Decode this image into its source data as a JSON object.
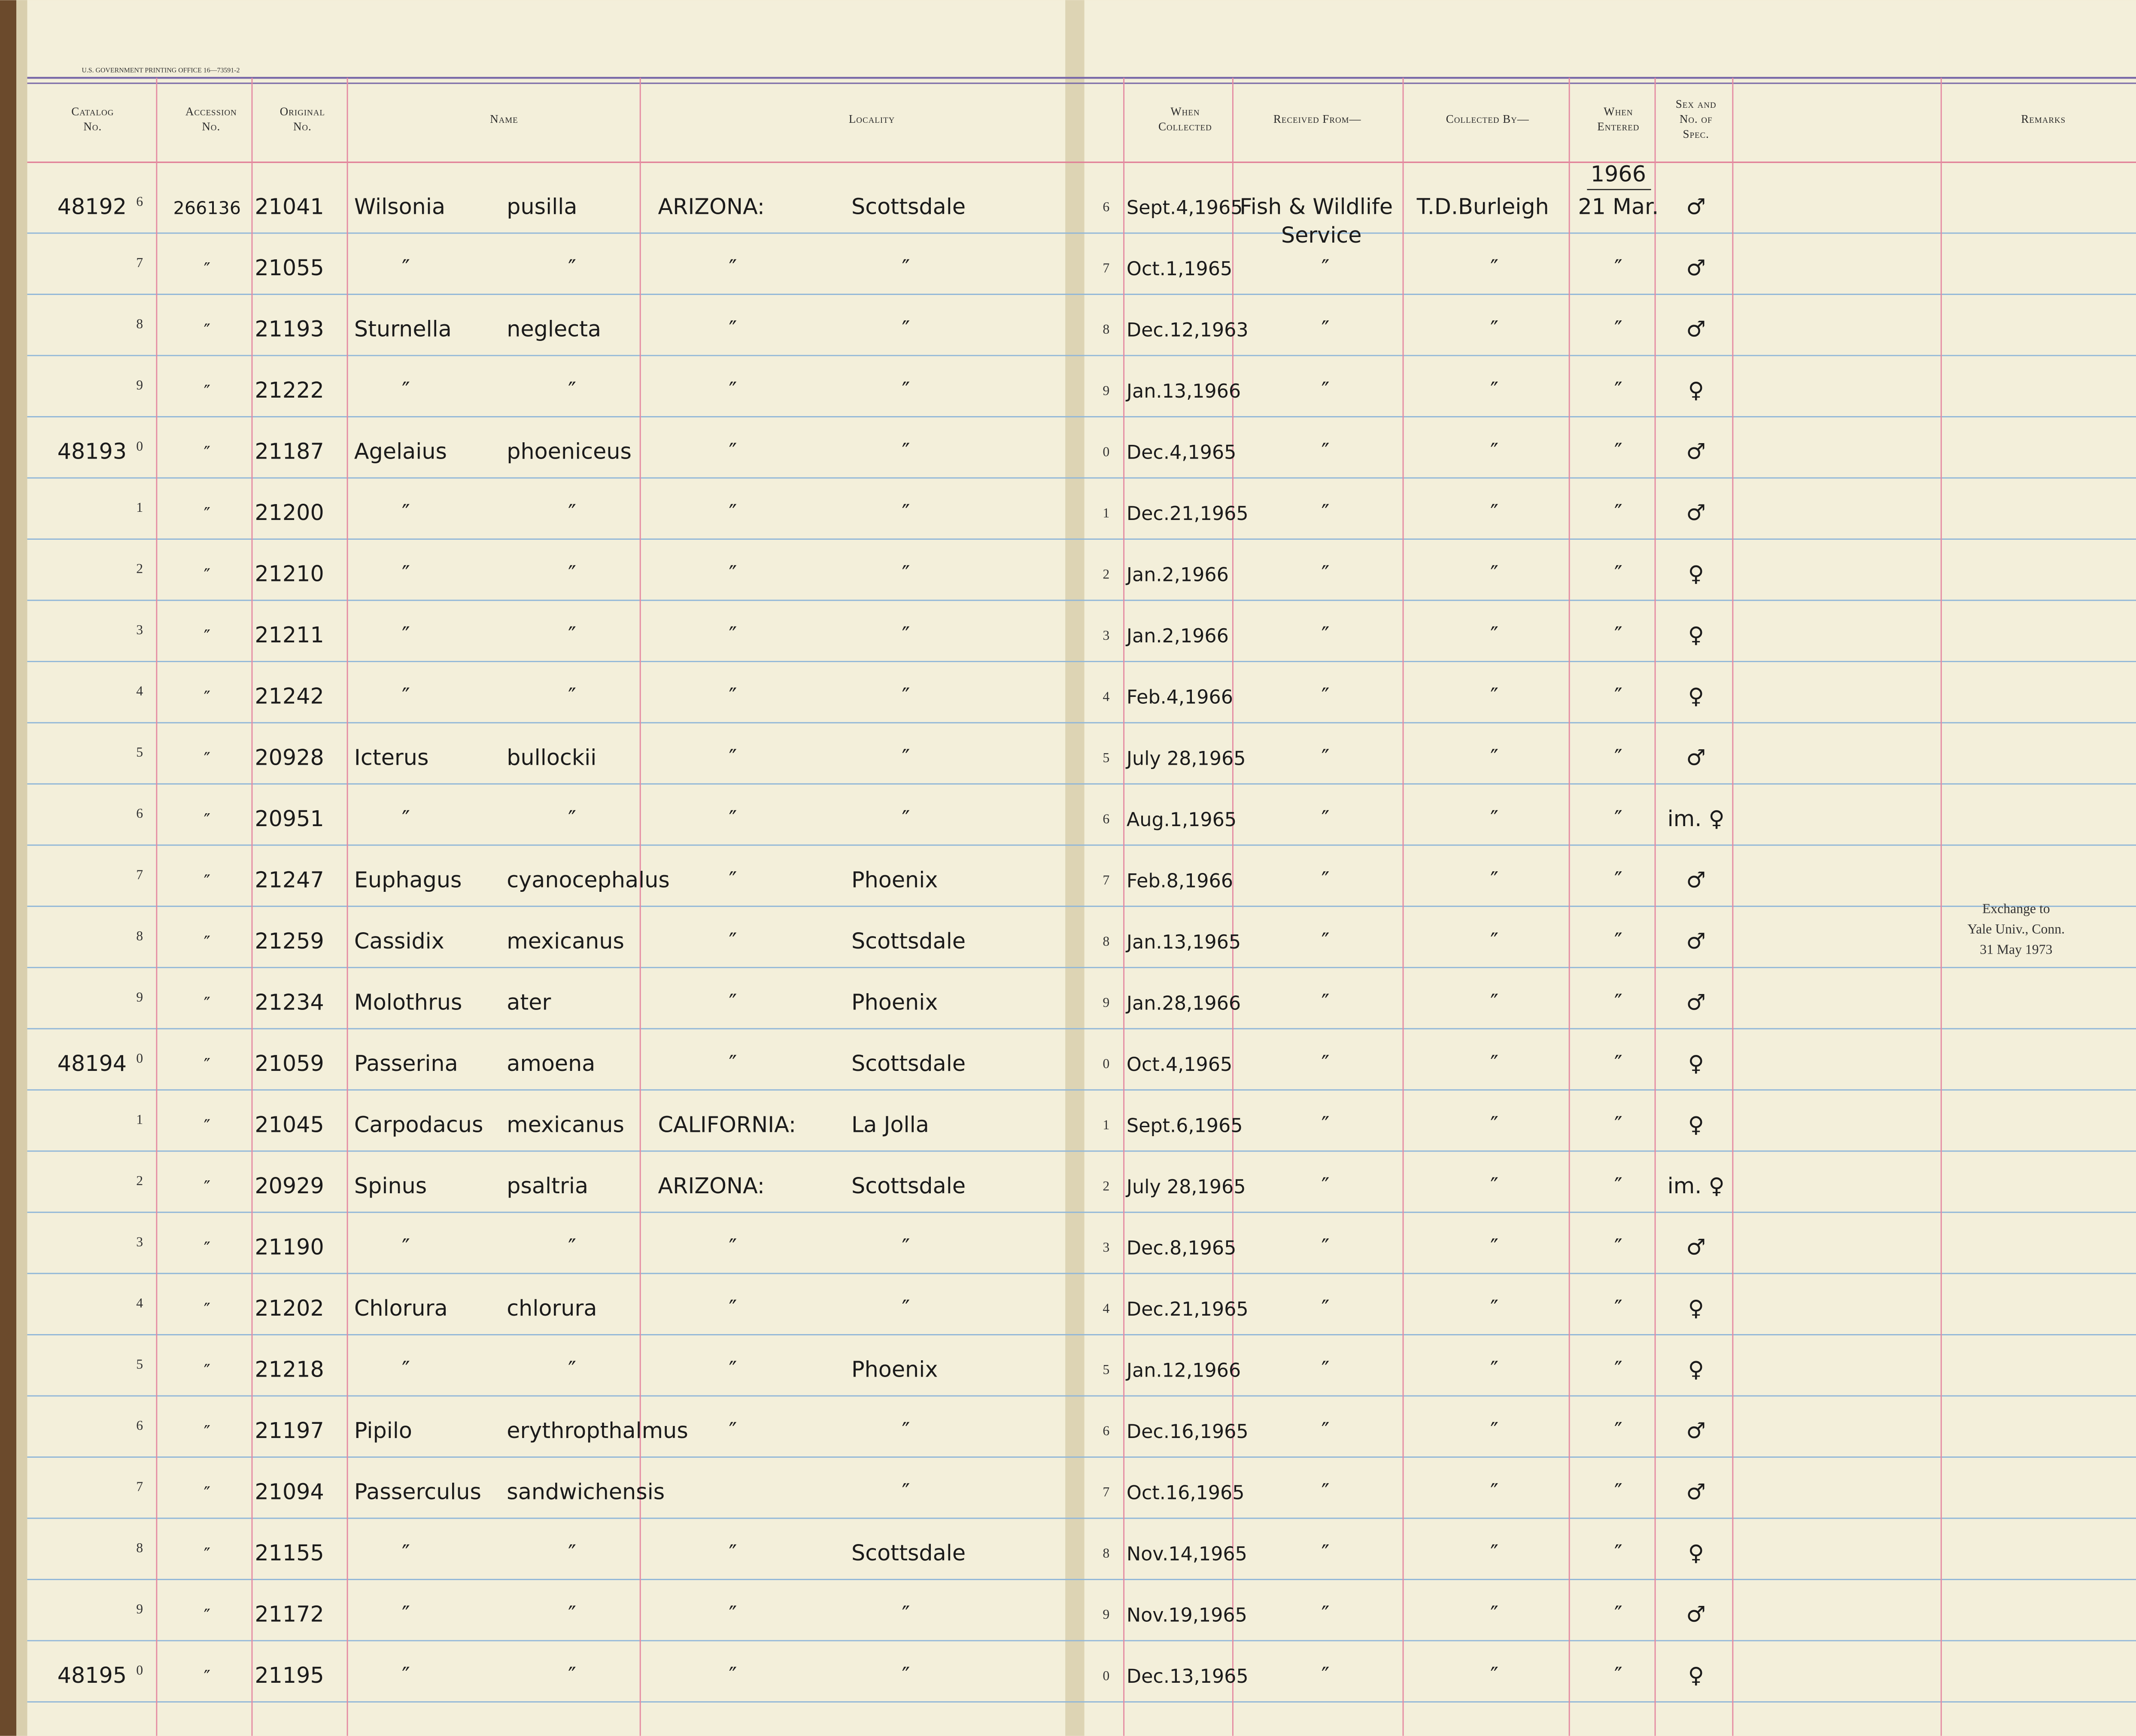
{
  "header": {
    "printer_imprint": "U.S. GOVERNMENT PRINTING OFFICE 16—73591-2",
    "columns": {
      "catalog": [
        "Catalog",
        "No."
      ],
      "accession": [
        "Accession",
        "No."
      ],
      "original": [
        "Original",
        "No."
      ],
      "name": [
        "Name"
      ],
      "locality": [
        "Locality"
      ],
      "collected": [
        "When",
        "Collected"
      ],
      "received": [
        "Received From—"
      ],
      "collected_by": [
        "Collected By—"
      ],
      "entered": [
        "When",
        "Entered"
      ],
      "sex": [
        "Sex and",
        "No. of",
        "Spec."
      ],
      "remarks": [
        "Remarks"
      ]
    }
  },
  "entered_year": "1966",
  "rows": [
    {
      "catalog": "48192",
      "digit": "6",
      "accession": "266136",
      "original": "21041",
      "genus": "Wilsonia",
      "species": "pusilla",
      "state": "ARIZONA:",
      "locality": "Scottsdale",
      "collected": "Sept.4,1965",
      "received": [
        "Fish & Wildlife",
        "Service"
      ],
      "collected_by": "T.D.Burleigh",
      "entered": "21 Mar.",
      "sex": "♂"
    },
    {
      "digit": "7",
      "accession": "″",
      "original": "21055",
      "genus": "″",
      "species": "″",
      "state": "″",
      "locality": "″",
      "collected": "Oct.1,1965",
      "received": "″",
      "collected_by": "″",
      "entered": "″",
      "sex": "♂"
    },
    {
      "digit": "8",
      "accession": "″",
      "original": "21193",
      "genus": "Sturnella",
      "species": "neglecta",
      "state": "″",
      "locality": "″",
      "collected": "Dec.12,1963",
      "received": "″",
      "collected_by": "″",
      "entered": "″",
      "sex": "♂"
    },
    {
      "digit": "9",
      "accession": "″",
      "original": "21222",
      "genus": "″",
      "species": "″",
      "state": "″",
      "locality": "″",
      "collected": "Jan.13,1966",
      "received": "″",
      "collected_by": "″",
      "entered": "″",
      "sex": "♀"
    },
    {
      "catalog": "48193",
      "digit": "0",
      "accession": "″",
      "original": "21187",
      "genus": "Agelaius",
      "species": "phoeniceus",
      "state": "″",
      "locality": "″",
      "collected": "Dec.4,1965",
      "received": "″",
      "collected_by": "″",
      "entered": "″",
      "sex": "♂"
    },
    {
      "digit": "1",
      "accession": "″",
      "original": "21200",
      "genus": "″",
      "species": "″",
      "state": "″",
      "locality": "″",
      "collected": "Dec.21,1965",
      "received": "″",
      "collected_by": "″",
      "entered": "″",
      "sex": "♂"
    },
    {
      "digit": "2",
      "accession": "″",
      "original": "21210",
      "genus": "″",
      "species": "″",
      "state": "″",
      "locality": "″",
      "collected": "Jan.2,1966",
      "received": "″",
      "collected_by": "″",
      "entered": "″",
      "sex": "♀"
    },
    {
      "digit": "3",
      "accession": "″",
      "original": "21211",
      "genus": "″",
      "species": "″",
      "state": "″",
      "locality": "″",
      "collected": "Jan.2,1966",
      "received": "″",
      "collected_by": "″",
      "entered": "″",
      "sex": "♀"
    },
    {
      "digit": "4",
      "accession": "″",
      "original": "21242",
      "genus": "″",
      "species": "″",
      "state": "″",
      "locality": "″",
      "collected": "Feb.4,1966",
      "received": "″",
      "collected_by": "″",
      "entered": "″",
      "sex": "♀"
    },
    {
      "digit": "5",
      "accession": "″",
      "original": "20928",
      "genus": "Icterus",
      "species": "bullockii",
      "state": "″",
      "locality": "″",
      "collected": "July 28,1965",
      "received": "″",
      "collected_by": "″",
      "entered": "″",
      "sex": "♂"
    },
    {
      "digit": "6",
      "accession": "″",
      "original": "20951",
      "genus": "″",
      "species": "″",
      "state": "″",
      "locality": "″",
      "collected": "Aug.1,1965",
      "received": "″",
      "collected_by": "″",
      "entered": "″",
      "sex": "im. ♀"
    },
    {
      "digit": "7",
      "accession": "″",
      "original": "21247",
      "genus": "Euphagus",
      "species": "cyanocephalus",
      "state": "″",
      "locality": "Phoenix",
      "collected": "Feb.8,1966",
      "received": "″",
      "collected_by": "″",
      "entered": "″",
      "sex": "♂"
    },
    {
      "digit": "8",
      "accession": "″",
      "original": "21259",
      "genus": "Cassidix",
      "species": "mexicanus",
      "state": "″",
      "locality": "Scottsdale",
      "collected": "Jan.13,1965",
      "received": "″",
      "collected_by": "″",
      "entered": "″",
      "sex": "♂",
      "remarks": [
        "Exchange to",
        "Yale Univ., Conn.",
        "31 May 1973"
      ]
    },
    {
      "digit": "9",
      "accession": "″",
      "original": "21234",
      "genus": "Molothrus",
      "species": "ater",
      "state": "″",
      "locality": "Phoenix",
      "collected": "Jan.28,1966",
      "received": "″",
      "collected_by": "″",
      "entered": "″",
      "sex": "♂"
    },
    {
      "catalog": "48194",
      "digit": "0",
      "accession": "″",
      "original": "21059",
      "genus": "Passerina",
      "species": "amoena",
      "state": "″",
      "locality": "Scottsdale",
      "collected": "Oct.4,1965",
      "received": "″",
      "collected_by": "″",
      "entered": "″",
      "sex": "♀"
    },
    {
      "digit": "1",
      "accession": "″",
      "original": "21045",
      "genus": "Carpodacus",
      "species": "mexicanus",
      "state": "CALIFORNIA:",
      "locality": "La Jolla",
      "collected": "Sept.6,1965",
      "received": "″",
      "collected_by": "″",
      "entered": "″",
      "sex": "♀"
    },
    {
      "digit": "2",
      "accession": "″",
      "original": "20929",
      "genus": "Spinus",
      "species": "psaltria",
      "state": "ARIZONA:",
      "locality": "Scottsdale",
      "collected": "July 28,1965",
      "received": "″",
      "collected_by": "″",
      "entered": "″",
      "sex": "im. ♀"
    },
    {
      "digit": "3",
      "accession": "″",
      "original": "21190",
      "genus": "″",
      "species": "″",
      "state": "″",
      "locality": "″",
      "collected": "Dec.8,1965",
      "received": "″",
      "collected_by": "″",
      "entered": "″",
      "sex": "♂"
    },
    {
      "digit": "4",
      "accession": "″",
      "original": "21202",
      "genus": "Chlorura",
      "species": "chlorura",
      "state": "″",
      "locality": "″",
      "collected": "Dec.21,1965",
      "received": "″",
      "collected_by": "″",
      "entered": "″",
      "sex": "♀"
    },
    {
      "digit": "5",
      "accession": "″",
      "original": "21218",
      "genus": "″",
      "species": "″",
      "state": "″",
      "locality": "Phoenix",
      "collected": "Jan.12,1966",
      "received": "″",
      "collected_by": "″",
      "entered": "″",
      "sex": "♀"
    },
    {
      "digit": "6",
      "accession": "″",
      "original": "21197",
      "genus": "Pipilo",
      "species": "erythropthalmus",
      "state": "″",
      "locality": "″",
      "collected": "Dec.16,1965",
      "received": "″",
      "collected_by": "″",
      "entered": "″",
      "sex": "♂"
    },
    {
      "digit": "7",
      "accession": "″",
      "original": "21094",
      "genus": "Passerculus",
      "species": "sandwichensis",
      "locality": "″",
      "collected": "Oct.16,1965",
      "received": "″",
      "collected_by": "″",
      "entered": "″",
      "sex": "♂"
    },
    {
      "digit": "8",
      "accession": "″",
      "original": "21155",
      "genus": "″",
      "species": "″",
      "state": "″",
      "locality": "Scottsdale",
      "collected": "Nov.14,1965",
      "received": "″",
      "collected_by": "″",
      "entered": "″",
      "sex": "♀"
    },
    {
      "digit": "9",
      "accession": "″",
      "original": "21172",
      "genus": "″",
      "species": "″",
      "state": "″",
      "locality": "″",
      "collected": "Nov.19,1965",
      "received": "″",
      "collected_by": "″",
      "entered": "″",
      "sex": "♂"
    },
    {
      "catalog": "48195",
      "digit": "0",
      "accession": "″",
      "original": "21195",
      "genus": "″",
      "species": "″",
      "state": "″",
      "locality": "″",
      "collected": "Dec.13,1965",
      "received": "″",
      "collected_by": "″",
      "entered": "″",
      "sex": "♀"
    }
  ]
}
